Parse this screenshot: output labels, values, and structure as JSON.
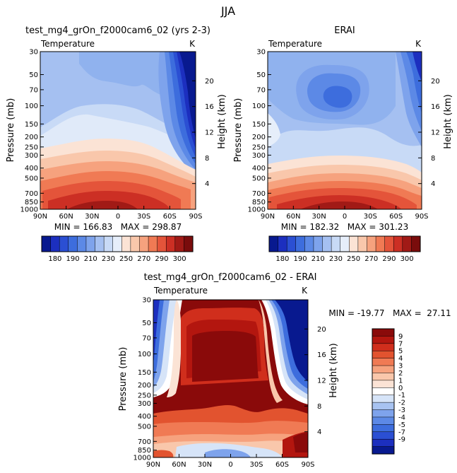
{
  "figure_title": "JJA",
  "chart_data": [
    {
      "type": "contour",
      "title": "test_mg4_grOn_f2000cam6_02 (yrs 2-3)",
      "variable": "Temperature",
      "units": "K",
      "xlabel": "",
      "ylabel": "Pressure (mb)",
      "y2label": "Height (km)",
      "x_ticks": [
        "90N",
        "60N",
        "30N",
        "0",
        "30S",
        "60S",
        "90S"
      ],
      "y_ticks": [
        30,
        50,
        70,
        100,
        150,
        200,
        250,
        300,
        400,
        500,
        700,
        850,
        1000
      ],
      "y2_ticks": [
        4,
        8,
        12,
        16,
        20
      ],
      "ylim": [
        1000,
        30
      ],
      "stats": "MIN = 166.83   MAX = 298.87",
      "min": 166.83,
      "max": 298.87
    },
    {
      "type": "contour",
      "title": "ERAI",
      "variable": "Temperature",
      "units": "K",
      "xlabel": "",
      "ylabel": "Pressure (mb)",
      "y2label": "Height (km)",
      "x_ticks": [
        "90N",
        "60N",
        "30N",
        "0",
        "30S",
        "60S",
        "90S"
      ],
      "y_ticks": [
        30,
        50,
        70,
        100,
        150,
        200,
        250,
        300,
        400,
        500,
        700,
        850,
        1000
      ],
      "y2_ticks": [
        4,
        8,
        12,
        16,
        20
      ],
      "ylim": [
        1000,
        30
      ],
      "stats": "MIN = 182.32   MAX = 301.23",
      "min": 182.32,
      "max": 301.23
    },
    {
      "type": "contour",
      "title": "test_mg4_grOn_f2000cam6_02 - ERAI",
      "variable": "Temperature",
      "units": "K",
      "xlabel": "",
      "ylabel": "Pressure (mb)",
      "y2label": "Height (km)",
      "x_ticks": [
        "90N",
        "60N",
        "30N",
        "0",
        "30S",
        "60S",
        "90S"
      ],
      "y_ticks": [
        30,
        50,
        70,
        100,
        150,
        200,
        250,
        300,
        400,
        500,
        700,
        850,
        1000
      ],
      "y2_ticks": [
        4,
        8,
        12,
        16,
        20
      ],
      "ylim": [
        1000,
        30
      ],
      "stats": "MIN = -19.77   MAX =  27.11",
      "min": -19.77,
      "max": 27.11
    }
  ],
  "colorbar_abs": {
    "labels": [
      "180",
      "190",
      "210",
      "230",
      "250",
      "270",
      "290",
      "300"
    ],
    "colors": [
      "#08198f",
      "#1c2fbf",
      "#2b4fd3",
      "#3d6ddd",
      "#5c89e6",
      "#7ea3ec",
      "#a5c0f1",
      "#c8daf6",
      "#e6eefa",
      "#fbe3d5",
      "#f9c7ab",
      "#f6a27e",
      "#f07a54",
      "#e4543a",
      "#cc2f24",
      "#a11a16",
      "#7a0c0c"
    ]
  },
  "colorbar_diff": {
    "labels": [
      "9",
      "7",
      "5",
      "4",
      "3",
      "2",
      "1",
      "0",
      "-1",
      "-2",
      "-3",
      "-4",
      "-5",
      "-7",
      "-9"
    ],
    "colors": [
      "#8a0a0a",
      "#b3160f",
      "#d02e1c",
      "#e2532f",
      "#f07a54",
      "#f6a27e",
      "#f9c7ab",
      "#fbe3d5",
      "#ffffff",
      "#d6e4f8",
      "#a8c3f1",
      "#7ea3ec",
      "#5c89e6",
      "#3d6ddd",
      "#2b4fd3",
      "#1c2fbf",
      "#08198f"
    ]
  }
}
